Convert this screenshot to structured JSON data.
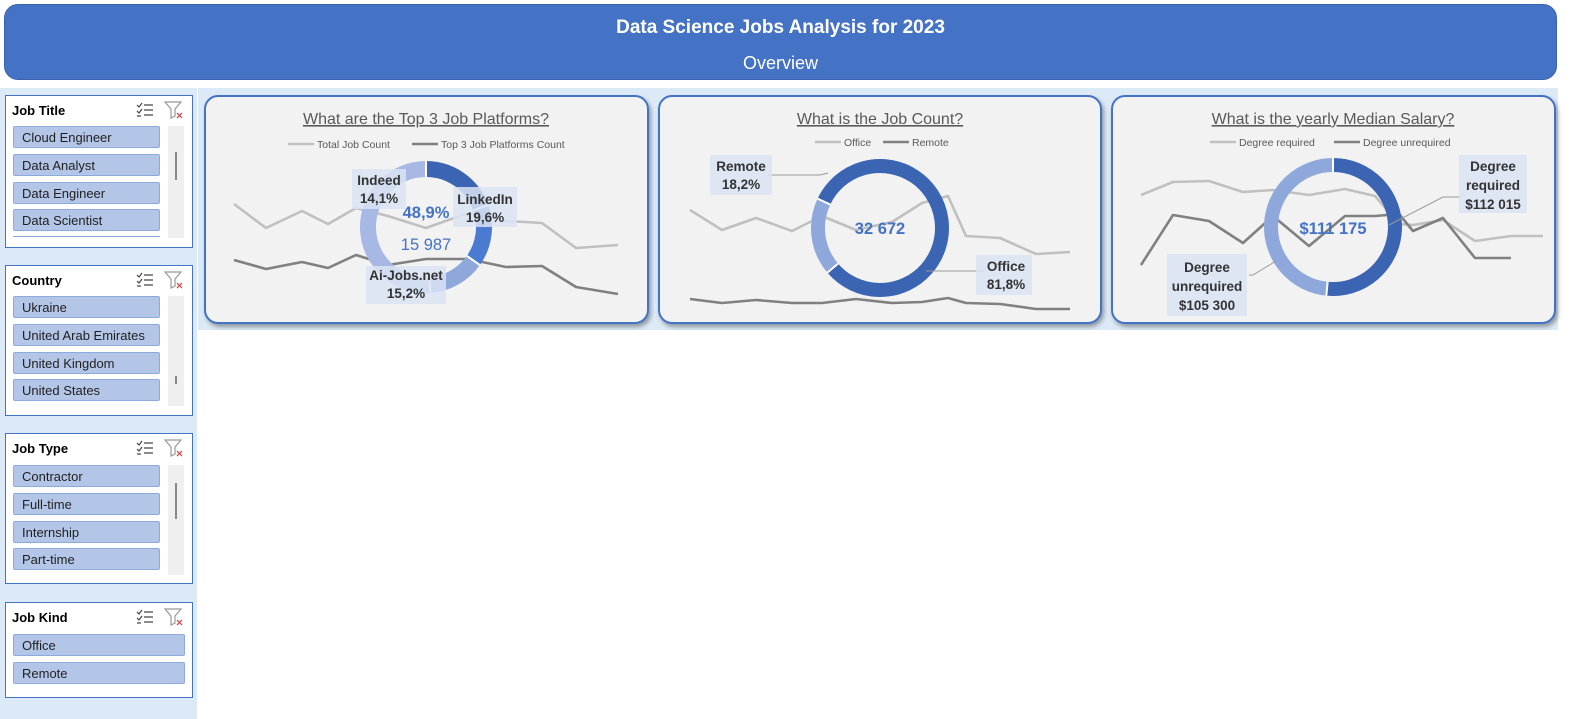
{
  "header": {
    "title": "Data Science Jobs Analysis for 2023",
    "subtitle": "Overview"
  },
  "slicers": {
    "job_title": {
      "title": "Job Title",
      "items": [
        "Cloud Engineer",
        "Data Analyst",
        "Data Engineer",
        "Data Scientist"
      ]
    },
    "country": {
      "title": "Country",
      "items": [
        "Ukraine",
        "United Arab Emirates",
        "United Kingdom",
        "United States"
      ]
    },
    "job_type": {
      "title": "Job Type",
      "items": [
        "Contractor",
        "Full-time",
        "Internship",
        "Part-time"
      ]
    },
    "job_kind": {
      "title": "Job Kind",
      "items": [
        "Office",
        "Remote"
      ]
    }
  },
  "icons": {
    "multiselect": "multiselect-icon",
    "clear_filter": "clear-filter-icon"
  },
  "colors": {
    "header": "#4472c4",
    "dark_blue": "#3b64b3",
    "mid_blue": "#4a7bd0",
    "light_blue": "#8fa8dc",
    "pale_blue": "#a6b8e3",
    "line_light": "#c0c0c0",
    "line_dark": "#808080"
  },
  "chart_data": [
    {
      "type": "pie",
      "title": "What are the Top 3 Job Platforms?",
      "legend": [
        "Total Job Count",
        "Top 3 Job Platforms Count"
      ],
      "legend_placement": "top",
      "center_percent": "48,9%",
      "center_total": "15 987",
      "slices": [
        {
          "label": "LinkedIn",
          "value": 19.6,
          "display": "19,6%"
        },
        {
          "label": "Ai-Jobs.net",
          "value": 15.2,
          "display": "15,2%"
        },
        {
          "label": "Indeed",
          "value": 14.1,
          "display": "14,1%"
        }
      ]
    },
    {
      "type": "pie",
      "title": "What is the Job Count?",
      "legend": [
        "Office",
        "Remote"
      ],
      "legend_placement": "top",
      "center_total": "32 672",
      "slices": [
        {
          "label": "Office",
          "value": 81.8,
          "display": "81,8%"
        },
        {
          "label": "Remote",
          "value": 18.2,
          "display": "18,2%"
        }
      ]
    },
    {
      "type": "pie",
      "title": "What is the yearly Median Salary?",
      "legend": [
        "Degree required",
        "Degree unrequired"
      ],
      "legend_placement": "top",
      "center_total": "$111 175",
      "slices": [
        {
          "label": "Degree required",
          "label_lines": [
            "Degree",
            "required"
          ],
          "value": 112015,
          "display": "$112 015"
        },
        {
          "label": "Degree unrequired",
          "label_lines": [
            "Degree",
            "unrequired"
          ],
          "value": 105300,
          "display": "$105 300"
        }
      ]
    }
  ]
}
